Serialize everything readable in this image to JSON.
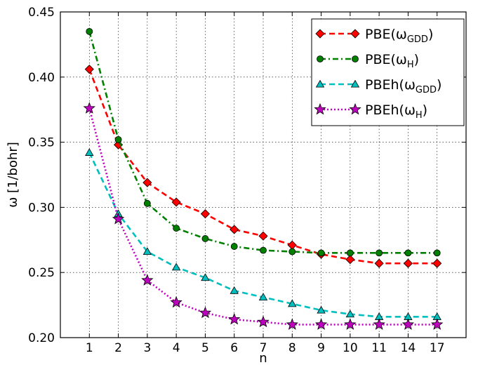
{
  "chart_data": {
    "type": "line",
    "title": "",
    "xlabel": "n",
    "ylabel": "ω [1/bohr]",
    "categories": [
      "1",
      "2",
      "3",
      "4",
      "5",
      "6",
      "7",
      "8",
      "9",
      "10",
      "11",
      "14",
      "17"
    ],
    "ylim": [
      0.2,
      0.45
    ],
    "yticks": [
      0.2,
      0.25,
      0.3,
      0.35,
      0.4,
      0.45
    ],
    "ytick_labels": [
      "0.20",
      "0.25",
      "0.30",
      "0.35",
      "0.40",
      "0.45"
    ],
    "grid": true,
    "legend_position": "top-right",
    "series": [
      {
        "name": "PBE(ωGDD)",
        "name_base": "PBE(ω",
        "name_sub": "GDD",
        "name_tail": ")",
        "color": "#ff0000",
        "marker": "diamond",
        "linestyle": "dashed",
        "values": [
          0.406,
          0.348,
          0.319,
          0.304,
          0.295,
          0.283,
          0.278,
          0.271,
          0.264,
          0.26,
          0.257,
          0.257,
          0.257
        ]
      },
      {
        "name": "PBE(ωH)",
        "name_base": "PBE(ω",
        "name_sub": "H",
        "name_tail": ")",
        "color": "#008000",
        "marker": "circle",
        "linestyle": "dashdot",
        "values": [
          0.435,
          0.352,
          0.303,
          0.284,
          0.276,
          0.27,
          0.267,
          0.266,
          0.265,
          0.265,
          0.265,
          0.265,
          0.265
        ]
      },
      {
        "name": "PBEh(ωGDD)",
        "name_base": "PBEh(ω",
        "name_sub": "GDD",
        "name_tail": ")",
        "color": "#00bfbf",
        "marker": "triangle",
        "linestyle": "dashed",
        "values": [
          0.342,
          0.295,
          0.266,
          0.254,
          0.246,
          0.236,
          0.231,
          0.226,
          0.221,
          0.218,
          0.216,
          0.216,
          0.216
        ]
      },
      {
        "name": "PBEh(ωH)",
        "name_base": "PBEh(ω",
        "name_sub": "H",
        "name_tail": ")",
        "color": "#bf00bf",
        "marker": "star",
        "linestyle": "dotted",
        "values": [
          0.376,
          0.291,
          0.244,
          0.227,
          0.219,
          0.214,
          0.212,
          0.21,
          0.21,
          0.21,
          0.21,
          0.21,
          0.21
        ]
      }
    ]
  }
}
